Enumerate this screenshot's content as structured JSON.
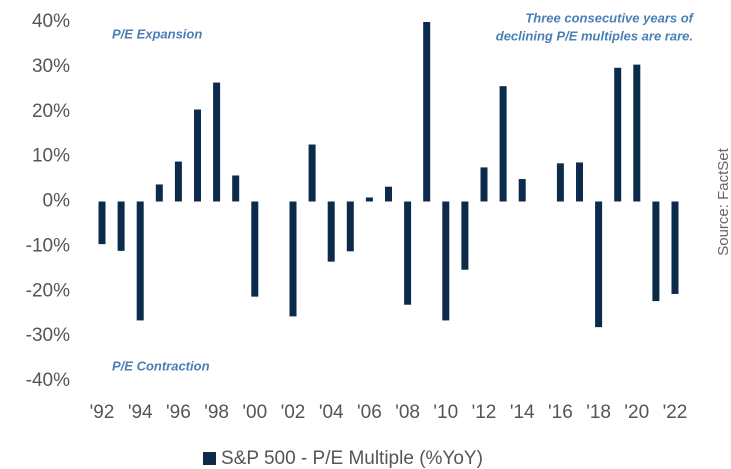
{
  "chart_data": {
    "type": "bar",
    "categories": [
      "'92",
      null,
      "'94",
      null,
      "'96",
      null,
      "'98",
      null,
      "'00",
      null,
      "'02",
      null,
      "'04",
      null,
      "'06",
      null,
      "'08",
      null,
      "'10",
      null,
      "'12",
      null,
      "'14",
      null,
      "'16",
      null,
      "'18",
      null,
      "'20",
      null,
      "'22"
    ],
    "series": [
      {
        "name": "S&P 500 - P/E Multiple (%YoY)",
        "color": "#0c2b4b",
        "values": [
          -9.5,
          -11,
          -26.5,
          3.8,
          8.9,
          20.5,
          26.5,
          5.8,
          -21.2,
          0,
          -25.6,
          12.7,
          -13.4,
          -11.1,
          0.9,
          3.3,
          -23,
          40,
          -26.5,
          -15.2,
          7.6,
          25.7,
          5,
          0,
          8.5,
          8.7,
          -28,
          29.8,
          30.5,
          -22.2,
          -20.6
        ]
      }
    ],
    "ylim": [
      -40,
      40
    ],
    "yticks": [
      {
        "value": -40,
        "label": "-40%"
      },
      {
        "value": -30,
        "label": "-30%"
      },
      {
        "value": -20,
        "label": "-20%"
      },
      {
        "value": -10,
        "label": "-10%"
      },
      {
        "value": 0,
        "label": "0%"
      },
      {
        "value": 10,
        "label": "10%"
      },
      {
        "value": 20,
        "label": "20%"
      },
      {
        "value": 30,
        "label": "30%"
      },
      {
        "value": 40,
        "label": "40%"
      }
    ],
    "annotations": [
      "P/E Expansion",
      "P/E Contraction",
      [
        "Three consecutive years of",
        "declining P/E multiples are rare."
      ]
    ],
    "source": "Source: FactSet",
    "legend": "bottom"
  }
}
